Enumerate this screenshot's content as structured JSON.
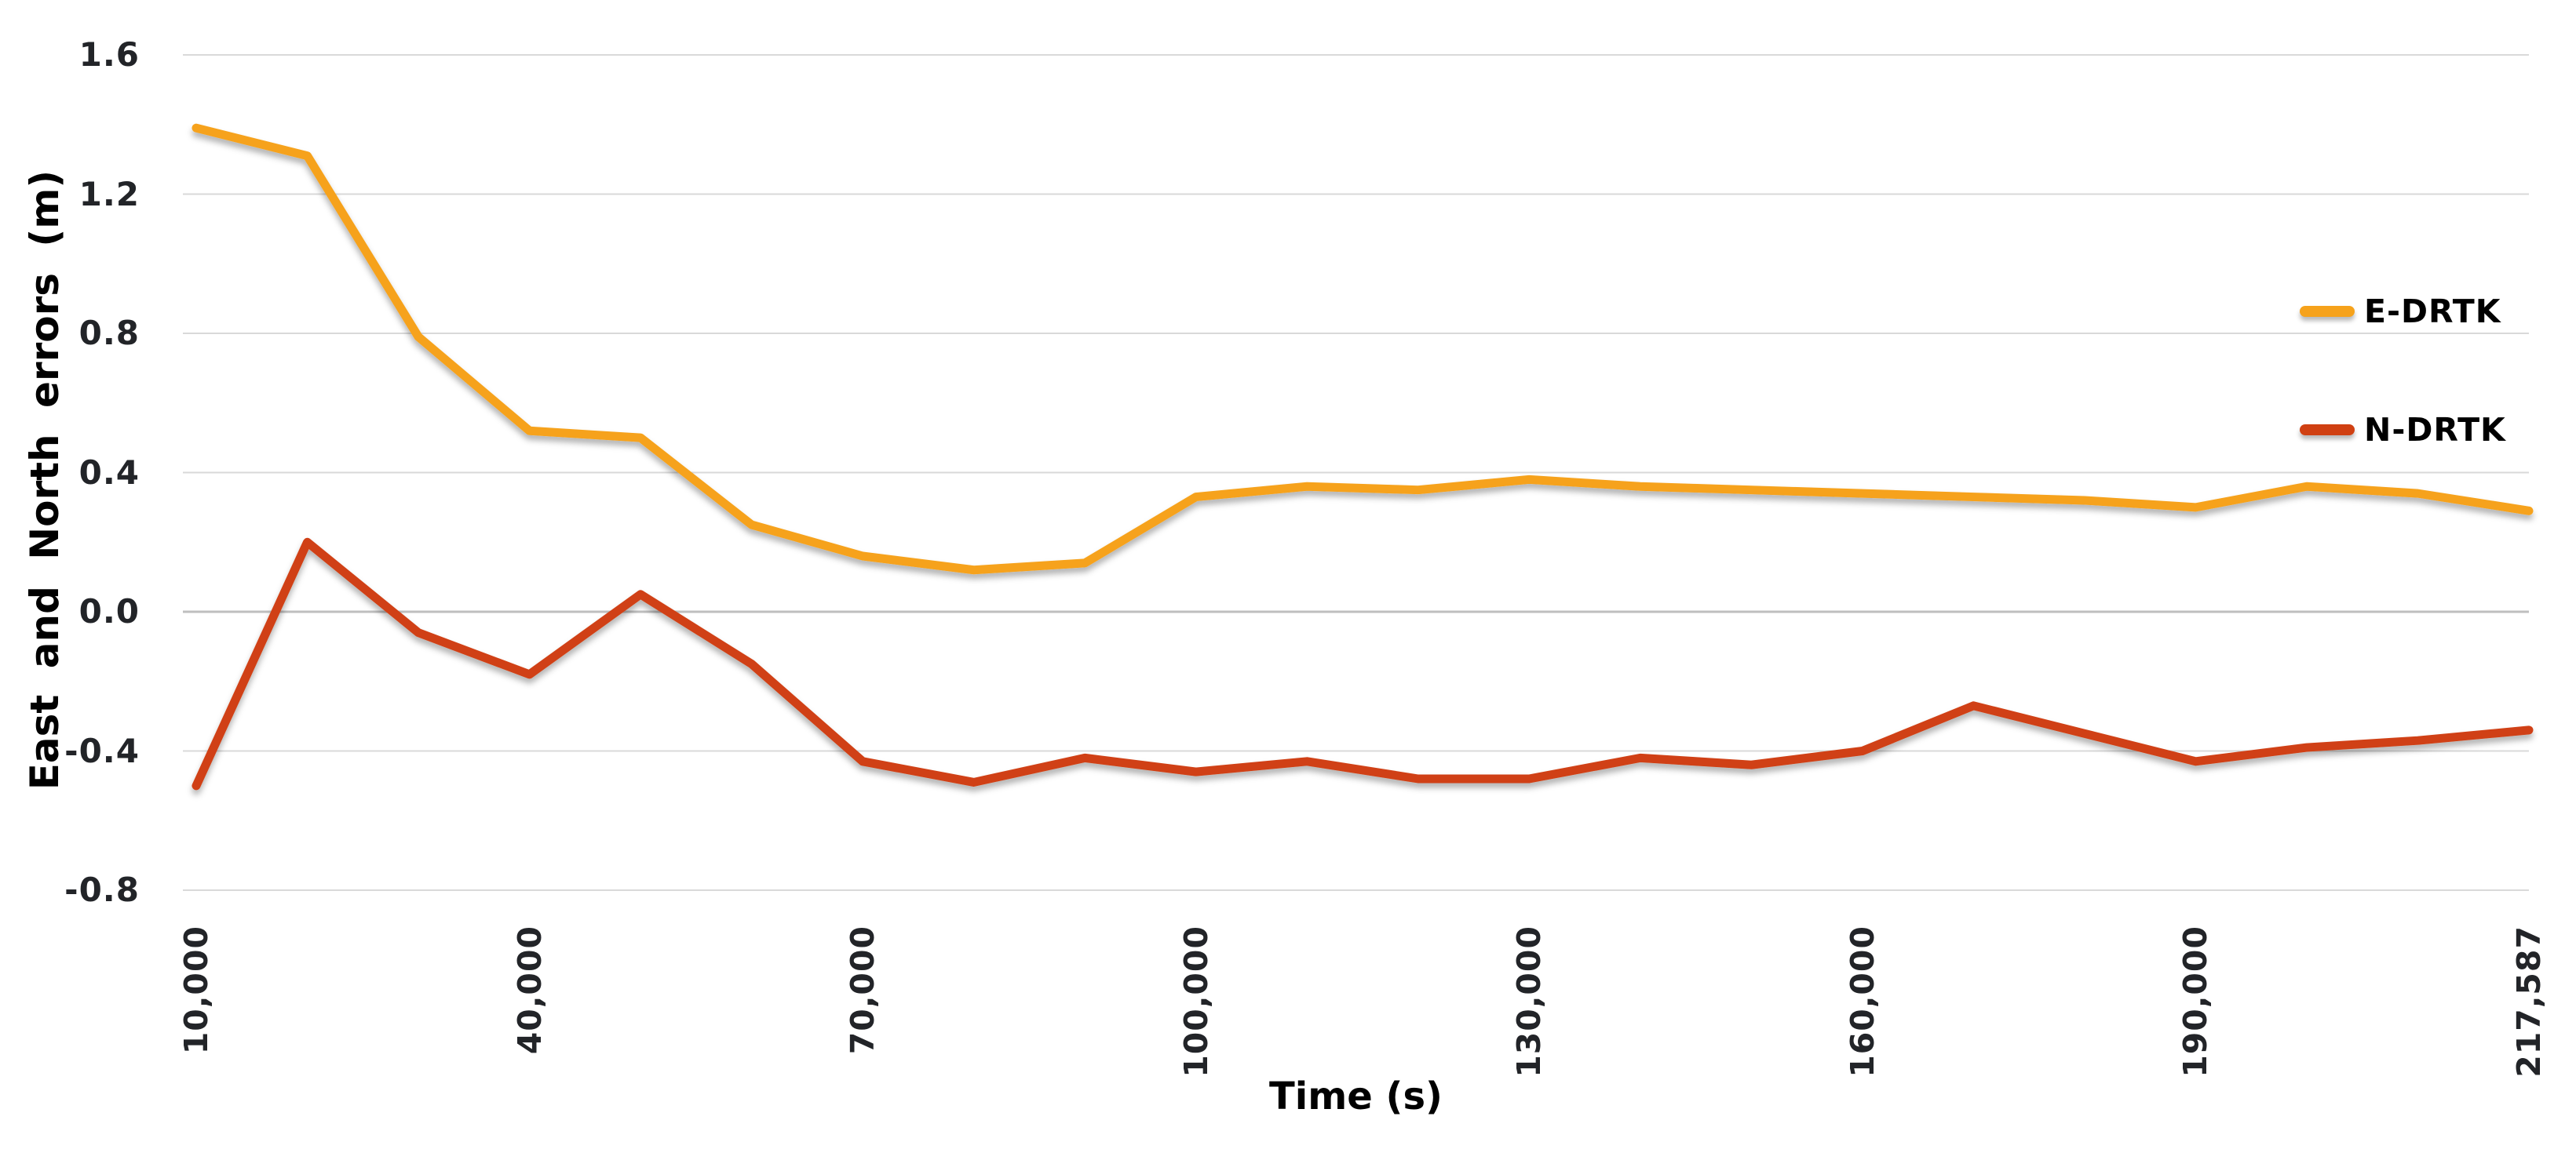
{
  "chart_data": {
    "type": "line",
    "title": "",
    "xlabel": "Time (s)",
    "ylabel": "East and North errors (m)",
    "ylim": [
      -0.8,
      1.6
    ],
    "y_tick_labels": [
      "1.6",
      "1.2",
      "0.8",
      "0.4",
      "0.0",
      "-0.4",
      "-0.8"
    ],
    "grid": "horizontal",
    "gridline_color": "#D9D9D9",
    "zero_line_color": "#BFBFBF",
    "tick_text_color": "#222428",
    "legend_position": "right-inside",
    "x": [
      10000,
      20000,
      30000,
      40000,
      50000,
      60000,
      70000,
      80000,
      90000,
      100000,
      110000,
      120000,
      130000,
      140000,
      150000,
      160000,
      170000,
      180000,
      190000,
      200000,
      210000,
      217587
    ],
    "x_tick_indices": [
      0,
      3,
      6,
      9,
      12,
      15,
      18,
      21
    ],
    "x_tick_labels": [
      "10,000",
      "40,000",
      "70,000",
      "100,000",
      "130,000",
      "160,000",
      "190,000",
      "217,587"
    ],
    "series": [
      {
        "name": "E-DRTK",
        "color": "#F6A21B",
        "values": [
          1.39,
          1.31,
          0.79,
          0.52,
          0.5,
          0.25,
          0.16,
          0.12,
          0.14,
          0.33,
          0.36,
          0.35,
          0.38,
          0.36,
          0.35,
          0.34,
          0.33,
          0.32,
          0.3,
          0.36,
          0.34,
          0.29
        ]
      },
      {
        "name": "N-DRTK",
        "color": "#D04012",
        "values": [
          -0.5,
          0.2,
          -0.06,
          -0.18,
          0.05,
          -0.15,
          -0.43,
          -0.49,
          -0.42,
          -0.46,
          -0.43,
          -0.48,
          -0.48,
          -0.42,
          -0.44,
          -0.4,
          -0.27,
          -0.35,
          -0.43,
          -0.39,
          -0.37,
          -0.34
        ]
      }
    ]
  }
}
